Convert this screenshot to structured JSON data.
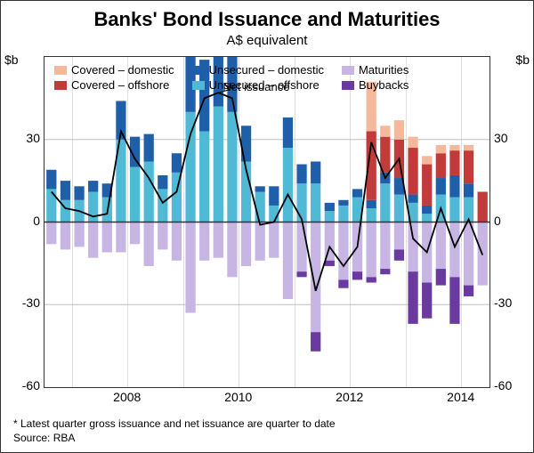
{
  "title": "Banks' Bond Issuance and Maturities",
  "subtitle": "A$ equivalent",
  "y_unit_label": "$b",
  "ylim": [
    -60,
    60
  ],
  "yticks": [
    -60,
    -30,
    0,
    30,
    60
  ],
  "xticks": [
    "2008",
    "2010",
    "2012",
    "2014"
  ],
  "xtick_indices": [
    6,
    14,
    22,
    30
  ],
  "footnote": "*    Latest quarter gross issuance and net issuance are quarter to date",
  "source": "Source: RBA",
  "net_issuance_label": "Net issuance",
  "colors": {
    "covered_domestic": "#f6b89a",
    "covered_offshore": "#c23a3a",
    "unsecured_domestic": "#1f5fa9",
    "unsecured_offshore": "#4fb9d6",
    "maturities": "#c7b5e3",
    "buybacks": "#6a3aa0",
    "net_line": "#000000",
    "grid": "#bfbfbf",
    "axis": "#333333",
    "bg": "#ffffff"
  },
  "legend": [
    {
      "label": "Covered – domestic",
      "key": "covered_domestic"
    },
    {
      "label": "Covered – offshore",
      "key": "covered_offshore"
    },
    {
      "label": "Unsecured – domestic",
      "key": "unsecured_domestic"
    },
    {
      "label": "Unsecured – offshore",
      "key": "unsecured_offshore"
    },
    {
      "label": "Maturities",
      "key": "maturities"
    },
    {
      "label": "Buybacks",
      "key": "buybacks"
    }
  ],
  "bar_width": 0.72,
  "n_periods": 32,
  "series": {
    "unsecured_offshore": [
      12,
      8,
      8,
      11,
      9,
      30,
      20,
      22,
      12,
      18,
      40,
      33,
      42,
      40,
      22,
      11,
      6,
      27,
      14,
      14,
      4,
      6,
      9,
      5,
      14,
      10,
      7,
      3,
      10,
      9,
      9,
      0
    ],
    "unsecured_domestic": [
      7,
      7,
      5,
      4,
      5,
      14,
      11,
      10,
      5,
      7,
      25,
      26,
      18,
      25,
      13,
      2,
      7,
      11,
      7,
      8,
      3,
      2,
      3,
      3,
      4,
      6,
      3,
      3,
      6,
      8,
      5,
      0
    ],
    "covered_offshore": [
      0,
      0,
      0,
      0,
      0,
      0,
      0,
      0,
      0,
      0,
      0,
      0,
      0,
      0,
      0,
      0,
      0,
      0,
      0,
      0,
      0,
      0,
      0,
      25,
      13,
      14,
      17,
      15,
      9,
      9,
      12,
      11
    ],
    "covered_domestic": [
      0,
      0,
      0,
      0,
      0,
      0,
      0,
      0,
      0,
      0,
      0,
      0,
      0,
      0,
      0,
      0,
      0,
      0,
      0,
      0,
      0,
      0,
      0,
      18,
      4,
      7,
      4,
      3,
      3,
      2,
      2,
      0
    ],
    "maturities": [
      -8,
      -10,
      -9,
      -13,
      -11,
      -11,
      -8,
      -16,
      -10,
      -14,
      -33,
      -14,
      -13,
      -20,
      -16,
      -14,
      -13,
      -28,
      -18,
      -40,
      -14,
      -21,
      -18,
      -20,
      -17,
      -10,
      -18,
      -22,
      -17,
      -20,
      -23,
      -23
    ],
    "buybacks": [
      0,
      0,
      0,
      0,
      0,
      0,
      0,
      0,
      0,
      0,
      0,
      0,
      0,
      0,
      0,
      0,
      0,
      0,
      -2,
      -7,
      -2,
      -3,
      -3,
      -2,
      -2,
      -4,
      -19,
      -13,
      -6,
      -17,
      -4,
      0
    ]
  },
  "net_issuance": [
    11,
    5,
    4,
    2,
    3,
    33,
    23,
    16,
    7,
    11,
    32,
    45,
    47,
    45,
    19,
    -1,
    0,
    10,
    1,
    -25,
    -9,
    -16,
    -9,
    29,
    16,
    23,
    -6,
    -11,
    5,
    -9,
    1,
    -12
  ]
}
